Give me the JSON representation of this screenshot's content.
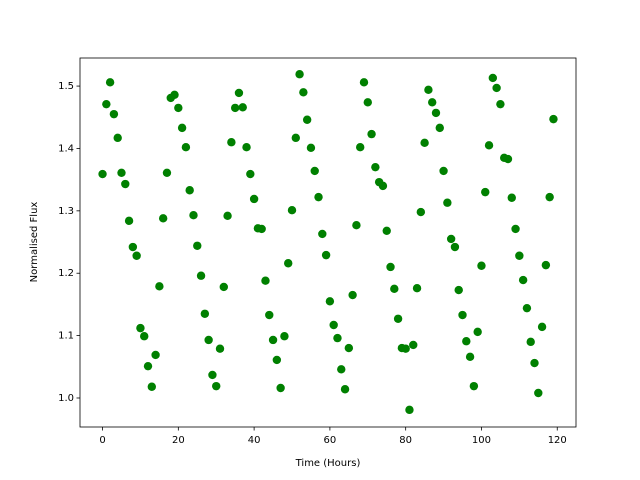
{
  "chart_data": {
    "type": "scatter",
    "xlabel": "Time (Hours)",
    "ylabel": "Normalised Flux",
    "color": "#008000",
    "grid": false,
    "x": [
      0,
      1,
      2,
      3,
      4,
      5,
      6,
      7,
      8,
      9,
      10,
      11,
      12,
      13,
      14,
      15,
      16,
      17,
      18,
      19,
      20,
      21,
      22,
      23,
      24,
      25,
      26,
      27,
      28,
      29,
      30,
      31,
      32,
      33,
      34,
      35,
      36,
      37,
      38,
      39,
      40,
      41,
      42,
      43,
      44,
      45,
      46,
      47,
      48,
      49,
      50,
      51,
      52,
      53,
      54,
      55,
      56,
      57,
      58,
      59,
      60,
      61,
      62,
      63,
      64,
      65,
      66,
      67,
      68,
      69,
      70,
      71,
      72,
      73,
      74,
      75,
      76,
      77,
      78,
      79,
      80,
      81,
      82,
      83,
      84,
      85,
      86,
      87,
      88,
      89,
      90,
      91,
      92,
      93,
      94,
      95,
      96,
      97,
      98,
      99,
      100,
      101,
      102,
      103,
      104,
      105,
      106,
      107,
      108,
      109,
      110,
      111,
      112,
      113,
      114,
      115,
      116,
      117,
      118,
      119
    ],
    "values": [
      1.359,
      1.471,
      1.506,
      1.455,
      1.417,
      1.361,
      1.343,
      1.284,
      1.242,
      1.228,
      1.112,
      1.099,
      1.051,
      1.018,
      1.069,
      1.179,
      1.288,
      1.361,
      1.481,
      1.486,
      1.465,
      1.433,
      1.402,
      1.333,
      1.293,
      1.244,
      1.196,
      1.135,
      1.093,
      1.037,
      1.019,
      1.079,
      1.178,
      1.292,
      1.41,
      1.465,
      1.489,
      1.466,
      1.402,
      1.359,
      1.319,
      1.272,
      1.271,
      1.188,
      1.133,
      1.093,
      1.061,
      1.016,
      1.099,
      1.216,
      1.301,
      1.417,
      1.519,
      1.49,
      1.446,
      1.401,
      1.364,
      1.322,
      1.263,
      1.229,
      1.155,
      1.117,
      1.096,
      1.046,
      1.014,
      1.08,
      1.165,
      1.277,
      1.402,
      1.506,
      1.474,
      1.423,
      1.37,
      1.346,
      1.34,
      1.268,
      1.21,
      1.175,
      1.127,
      1.08,
      1.079,
      0.981,
      1.085,
      1.176,
      1.298,
      1.409,
      1.494,
      1.474,
      1.457,
      1.433,
      1.364,
      1.313,
      1.255,
      1.242,
      1.173,
      1.133,
      1.091,
      1.066,
      1.019,
      1.106,
      1.212,
      1.33,
      1.405,
      1.513,
      1.497,
      1.471,
      1.385,
      1.383,
      1.321,
      1.271,
      1.228,
      1.189,
      1.144,
      1.09,
      1.056,
      1.008,
      1.114,
      1.213,
      1.322,
      1.447
    ],
    "xlim": [
      -5.95,
      124.95
    ],
    "xticks": [
      0,
      20,
      40,
      60,
      80,
      100,
      120
    ],
    "ylim": [
      0.9535,
      1.545
    ],
    "yticks": [
      {
        "value": 1.0,
        "label": "1.0"
      },
      1.1,
      1.2,
      1.3,
      1.4,
      1.5
    ]
  }
}
